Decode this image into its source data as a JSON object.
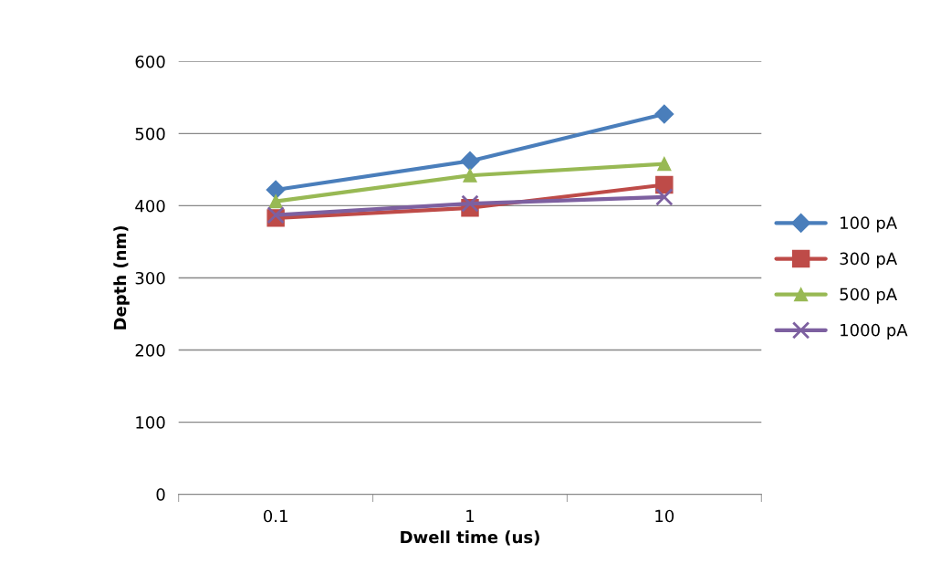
{
  "chart_data": {
    "type": "line",
    "xlabel": "Dwell time (us)",
    "ylabel": "Depth (nm)",
    "categories": [
      "0.1",
      "1",
      "10"
    ],
    "series": [
      {
        "name": "100 pA",
        "color": "#4a7ebb",
        "marker": "diamond",
        "values": [
          422,
          462,
          527
        ]
      },
      {
        "name": "300 pA",
        "color": "#be4b48",
        "marker": "square",
        "values": [
          383,
          397,
          429
        ]
      },
      {
        "name": "500 pA",
        "color": "#98b954",
        "marker": "triangle",
        "values": [
          406,
          442,
          458
        ]
      },
      {
        "name": "1000 pA",
        "color": "#7d60a0",
        "marker": "cross",
        "values": [
          387,
          403,
          412
        ]
      }
    ],
    "ylim": [
      0,
      600
    ],
    "yticks": [
      0,
      100,
      200,
      300,
      400,
      500,
      600
    ],
    "grid": "y",
    "legend": "right",
    "line_style": "solid"
  }
}
